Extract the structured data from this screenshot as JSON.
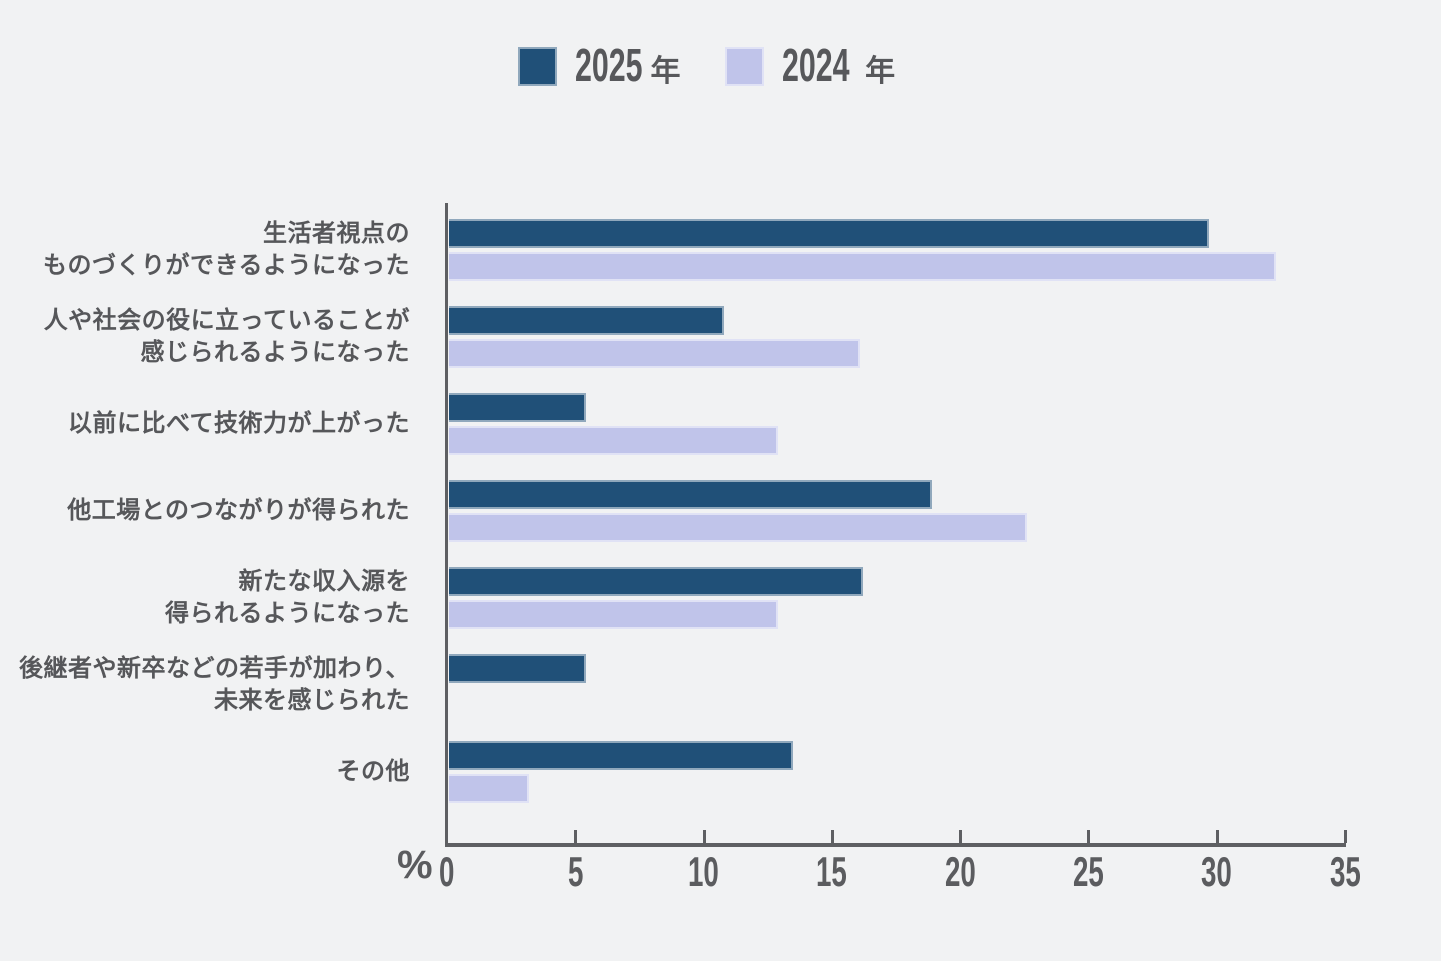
{
  "page": {
    "background": "#F1F2F3"
  },
  "legend": {
    "items": [
      {
        "year": "2025",
        "unit": "年"
      },
      {
        "year": "2024",
        "unit": "年"
      }
    ]
  },
  "axis": {
    "percent_label": "%"
  },
  "chart_data": {
    "type": "bar",
    "orientation": "horizontal",
    "categories": [
      "生活者視点の\nものづくりができるようになった",
      "人や社会の役に立っていることが\n感じられるようになった",
      "以前に比べて技術力が上がった",
      "他工場とのつながりが得られた",
      "新たな収入源を\n得られるようになった",
      "後継者や新卒などの若手が加わり、\n未来を感じられた",
      "その他"
    ],
    "series": [
      {
        "name": "2025年",
        "color": "#205078",
        "values": [
          29.7,
          10.8,
          5.4,
          18.9,
          16.2,
          5.4,
          13.5
        ]
      },
      {
        "name": "2024年",
        "color": "#C0C4EA",
        "values": [
          32.3,
          16.1,
          12.9,
          22.6,
          12.9,
          0,
          3.2
        ]
      }
    ],
    "xlabel": "%",
    "xlim": [
      0,
      35
    ],
    "x_ticks": [
      0,
      5,
      10,
      15,
      20,
      25,
      30,
      35
    ],
    "legend_position": "top",
    "grid": false
  }
}
